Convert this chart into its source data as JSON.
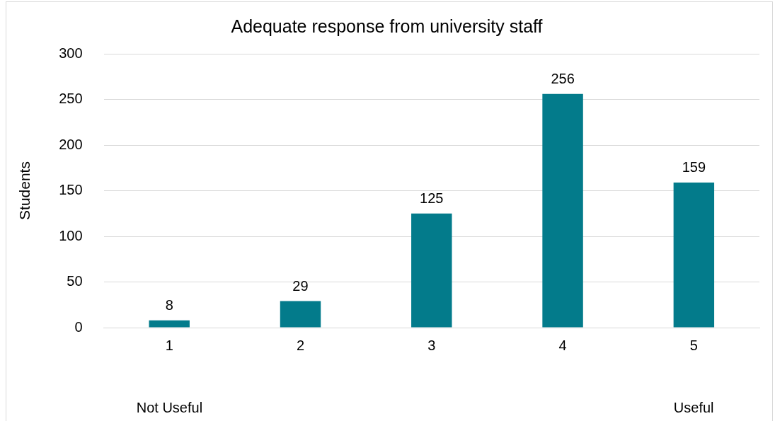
{
  "chart_data": {
    "type": "bar",
    "title": "Adequate response from university staff",
    "ylabel": "Students",
    "categories": [
      "1",
      "2",
      "3",
      "4",
      "5"
    ],
    "values": [
      8,
      29,
      125,
      256,
      159
    ],
    "color": "#037b8b",
    "ylim": [
      0,
      300
    ],
    "yticks": [
      0,
      50,
      100,
      150,
      200,
      250,
      300
    ],
    "grid": "y",
    "legend": false,
    "data_labels": true,
    "annotations": [
      "Not Useful",
      "Useful"
    ]
  }
}
